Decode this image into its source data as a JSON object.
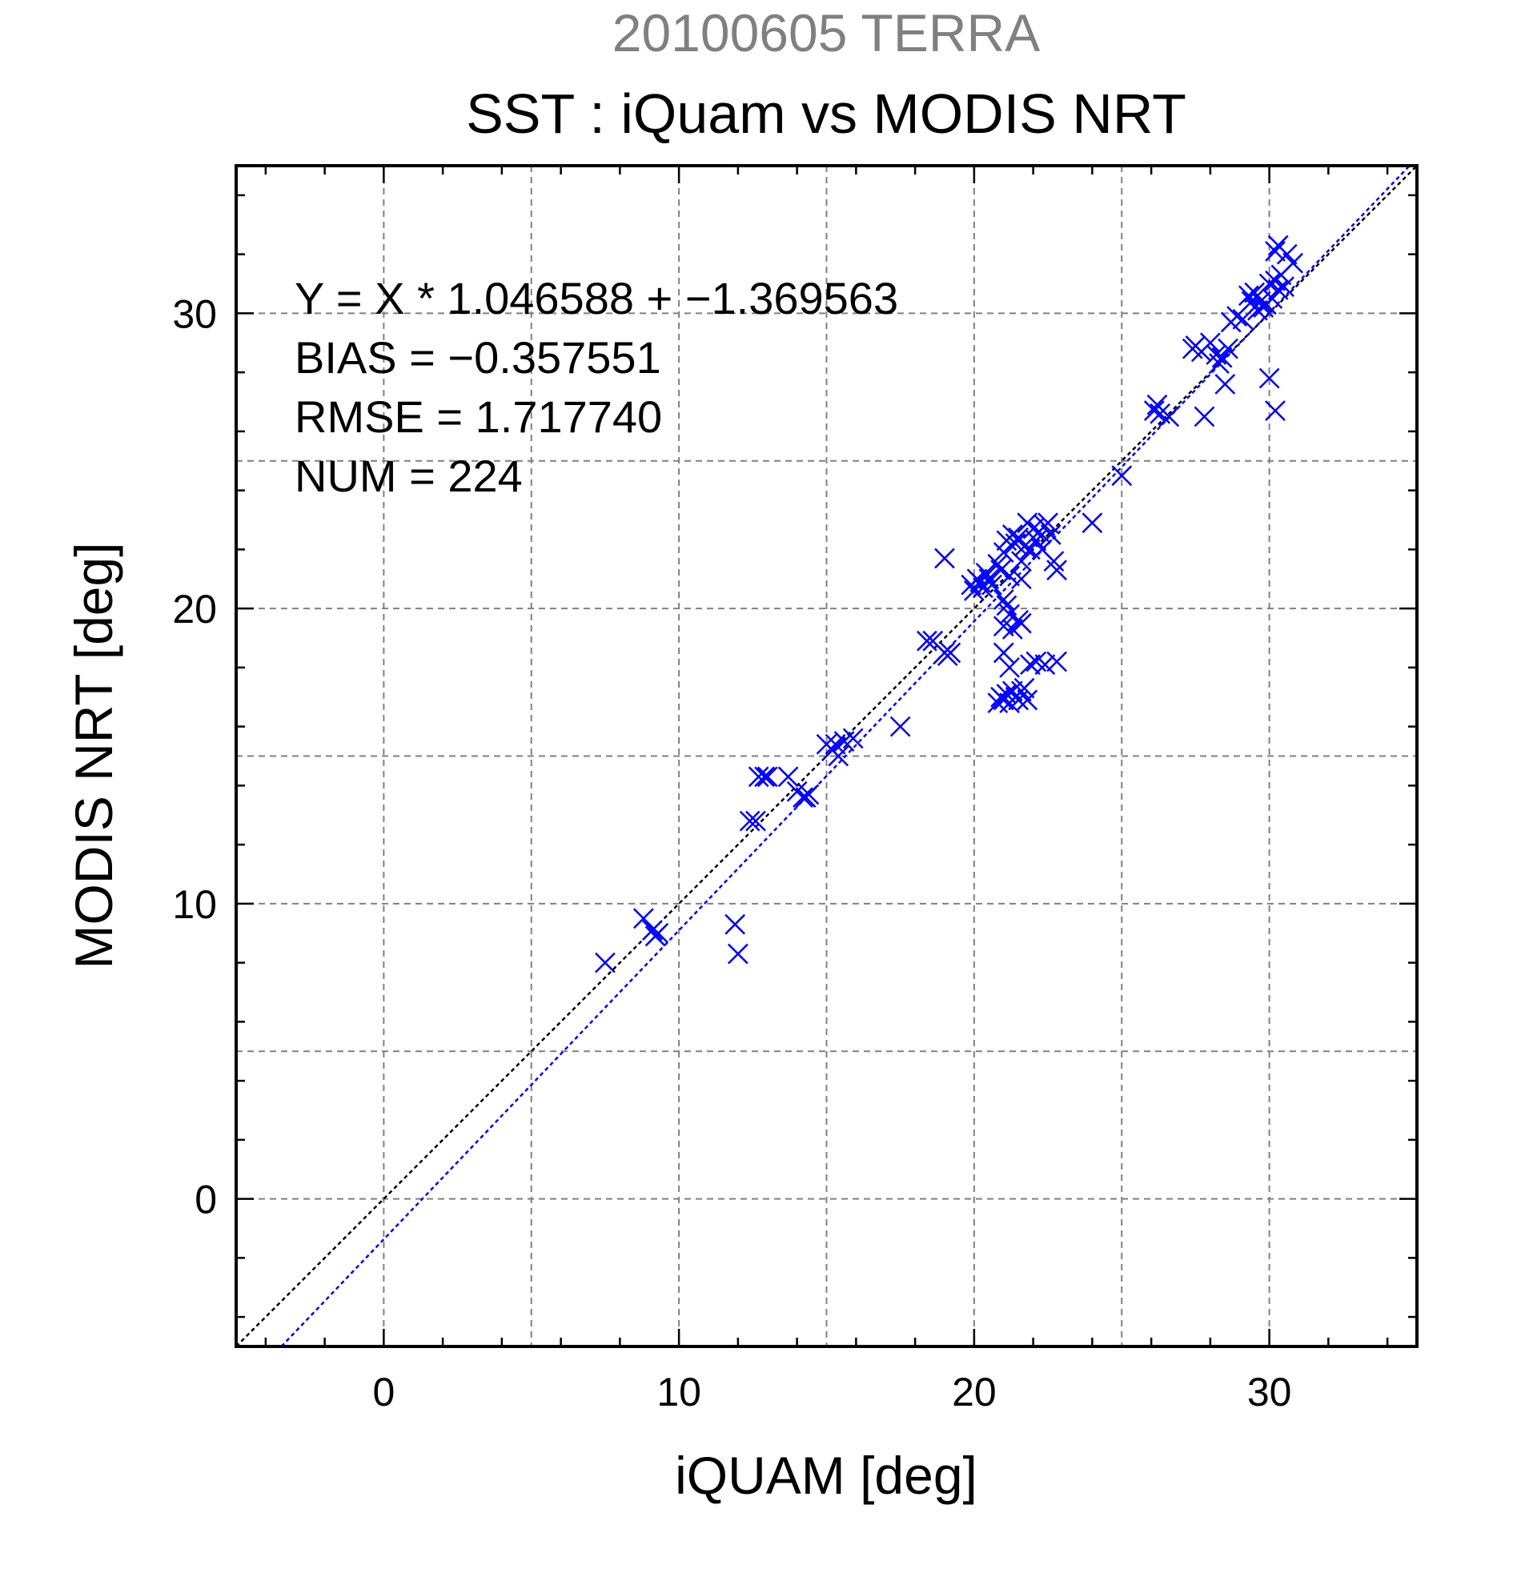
{
  "chart_data": {
    "type": "scatter",
    "supertitle": "20100605 TERRA",
    "title": "SST : iQuam vs MODIS NRT",
    "xlabel": "iQUAM [deg]",
    "ylabel": "MODIS NRT [deg]",
    "xlim": [
      -5,
      35
    ],
    "ylim": [
      -5,
      35
    ],
    "xticks": [
      0,
      10,
      20,
      30
    ],
    "yticks": [
      0,
      10,
      20,
      30
    ],
    "grid": true,
    "annotations": [
      "Y = X * 1.046588 + −1.369563",
      "BIAS = −0.357551",
      "RMSE = 1.717740",
      "NUM = 224"
    ],
    "lines": [
      {
        "kind": "identity",
        "slope": 1.0,
        "intercept": 0.0,
        "color": "#000000"
      },
      {
        "kind": "regression",
        "slope": 1.046588,
        "intercept": -1.369563,
        "color": "#0000ff"
      }
    ],
    "colors": {
      "supertitle": "#808080",
      "points": "#0000ff"
    },
    "series": [
      {
        "marker": "x",
        "points": [
          [
            7.5,
            8.0
          ],
          [
            8.8,
            9.5
          ],
          [
            9.1,
            9.1
          ],
          [
            9.2,
            8.9
          ],
          [
            9.3,
            9.0
          ],
          [
            11.9,
            9.3
          ],
          [
            12.0,
            8.3
          ],
          [
            12.4,
            12.8
          ],
          [
            12.6,
            12.8
          ],
          [
            12.7,
            14.3
          ],
          [
            12.9,
            14.3
          ],
          [
            13.0,
            14.3
          ],
          [
            13.7,
            14.3
          ],
          [
            14.0,
            13.8
          ],
          [
            14.2,
            13.6
          ],
          [
            14.4,
            13.7
          ],
          [
            14.3,
            13.6
          ],
          [
            15.0,
            15.4
          ],
          [
            15.2,
            15.2
          ],
          [
            15.3,
            15.4
          ],
          [
            15.4,
            15.0
          ],
          [
            15.6,
            15.5
          ],
          [
            15.9,
            15.6
          ],
          [
            17.5,
            16.0
          ],
          [
            18.4,
            18.9
          ],
          [
            18.6,
            18.9
          ],
          [
            19.0,
            18.5
          ],
          [
            19.1,
            18.4
          ],
          [
            19.2,
            18.5
          ],
          [
            19.0,
            21.7
          ],
          [
            19.9,
            20.8
          ],
          [
            20.0,
            20.6
          ],
          [
            20.1,
            21.0
          ],
          [
            20.2,
            20.9
          ],
          [
            20.3,
            20.7
          ],
          [
            20.4,
            21.2
          ],
          [
            20.5,
            21.0
          ],
          [
            20.6,
            20.8
          ],
          [
            20.8,
            21.5
          ],
          [
            20.9,
            21.3
          ],
          [
            21.0,
            21.9
          ],
          [
            21.1,
            22.3
          ],
          [
            21.2,
            21.1
          ],
          [
            21.3,
            22.5
          ],
          [
            21.4,
            22.2
          ],
          [
            21.5,
            22.4
          ],
          [
            21.6,
            21.6
          ],
          [
            21.7,
            22.1
          ],
          [
            21.8,
            22.9
          ],
          [
            21.9,
            22.0
          ],
          [
            22.0,
            22.7
          ],
          [
            22.1,
            22.3
          ],
          [
            22.2,
            22.6
          ],
          [
            22.3,
            22.0
          ],
          [
            22.4,
            22.8
          ],
          [
            22.6,
            22.5
          ],
          [
            22.7,
            21.6
          ],
          [
            22.8,
            21.3
          ],
          [
            22.5,
            22.9
          ],
          [
            21.6,
            21.0
          ],
          [
            21.0,
            20.3
          ],
          [
            21.1,
            20.1
          ],
          [
            21.2,
            19.8
          ],
          [
            21.0,
            19.4
          ],
          [
            21.3,
            19.3
          ],
          [
            21.5,
            19.6
          ],
          [
            21.6,
            19.5
          ],
          [
            21.0,
            18.5
          ],
          [
            21.2,
            18.0
          ],
          [
            20.8,
            16.8
          ],
          [
            20.9,
            17.0
          ],
          [
            21.0,
            16.9
          ],
          [
            21.1,
            17.1
          ],
          [
            21.2,
            16.8
          ],
          [
            21.3,
            17.2
          ],
          [
            21.4,
            17.0
          ],
          [
            21.5,
            16.9
          ],
          [
            21.6,
            17.2
          ],
          [
            21.7,
            17.3
          ],
          [
            21.8,
            16.9
          ],
          [
            21.9,
            18.1
          ],
          [
            22.1,
            18.2
          ],
          [
            22.4,
            18.1
          ],
          [
            22.8,
            18.2
          ],
          [
            24.0,
            22.9
          ],
          [
            25.0,
            24.5
          ],
          [
            26.1,
            26.7
          ],
          [
            26.2,
            26.9
          ],
          [
            26.3,
            26.6
          ],
          [
            26.6,
            26.5
          ],
          [
            27.4,
            28.8
          ],
          [
            27.5,
            28.9
          ],
          [
            27.7,
            28.7
          ],
          [
            27.8,
            26.5
          ],
          [
            28.0,
            29.0
          ],
          [
            28.2,
            28.6
          ],
          [
            28.3,
            28.3
          ],
          [
            28.4,
            28.5
          ],
          [
            28.5,
            27.6
          ],
          [
            28.6,
            28.8
          ],
          [
            28.7,
            29.7
          ],
          [
            28.9,
            29.9
          ],
          [
            29.1,
            29.8
          ],
          [
            29.3,
            30.6
          ],
          [
            29.4,
            30.4
          ],
          [
            29.5,
            30.7
          ],
          [
            29.6,
            30.1
          ],
          [
            29.7,
            30.4
          ],
          [
            29.8,
            30.2
          ],
          [
            29.9,
            30.3
          ],
          [
            30.0,
            31.0
          ],
          [
            30.1,
            30.5
          ],
          [
            30.2,
            31.1
          ],
          [
            30.3,
            30.8
          ],
          [
            30.4,
            31.3
          ],
          [
            30.2,
            32.1
          ],
          [
            30.3,
            32.3
          ],
          [
            30.6,
            32.0
          ],
          [
            30.0,
            27.8
          ],
          [
            30.2,
            26.7
          ],
          [
            30.8,
            31.7
          ],
          [
            30.5,
            30.9
          ]
        ]
      }
    ]
  }
}
